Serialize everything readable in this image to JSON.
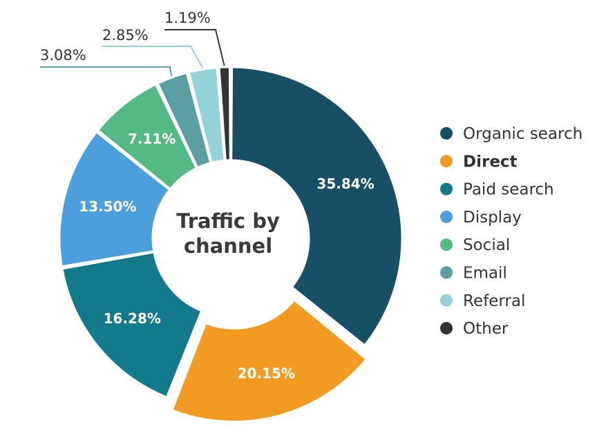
{
  "chart_data": {
    "type": "pie",
    "title": "Traffic by channel",
    "center_lines": [
      "Traffic by",
      "channel"
    ],
    "variant": "donut",
    "legend_position": "right",
    "categories": [
      "Organic search",
      "Direct",
      "Paid search",
      "Display",
      "Social",
      "Email",
      "Referral",
      "Other"
    ],
    "values": [
      35.84,
      20.15,
      16.28,
      13.5,
      7.11,
      3.08,
      2.85,
      1.19
    ],
    "value_labels": [
      "35.84%",
      "20.15%",
      "16.28%",
      "13.50%",
      "7.11%",
      "3.08%",
      "2.85%",
      "1.19%"
    ],
    "colors": [
      "#164f66",
      "#f29b23",
      "#137a8c",
      "#4a9fdc",
      "#55b985",
      "#5b9fa3",
      "#93d3d8",
      "#333333"
    ],
    "emphasized_category": "Direct",
    "exploded_category": "Direct"
  }
}
